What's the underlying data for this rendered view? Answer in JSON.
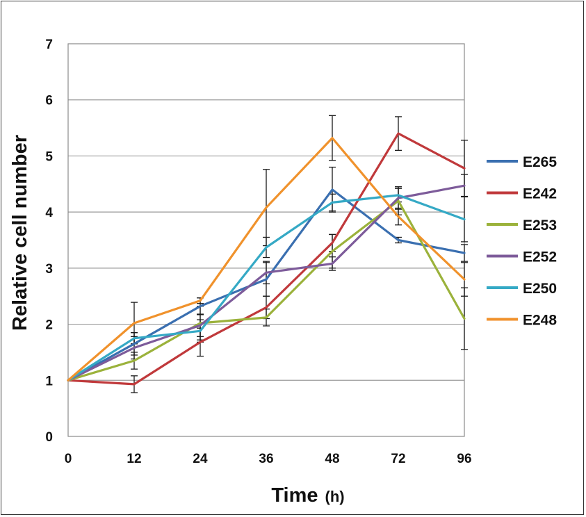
{
  "chart_data": {
    "type": "line",
    "title": "",
    "xlabel": "Time",
    "xlabel_unit": "(h)",
    "ylabel": "Relative cell number",
    "categories": [
      "0",
      "12",
      "24",
      "36",
      "48",
      "72",
      "96"
    ],
    "ylim": [
      0,
      7
    ],
    "yticks": [
      "0",
      "1",
      "2",
      "3",
      "4",
      "5",
      "6",
      "7"
    ],
    "grid": "horizontal",
    "legend_position": "right",
    "series": [
      {
        "name": "E265",
        "color": "#3a6fb0",
        "values": [
          1.0,
          1.65,
          2.32,
          2.8,
          4.4,
          3.5,
          3.27
        ],
        "errors": [
          0,
          0.2,
          0.15,
          0.3,
          0.4,
          0.05,
          0.15
        ]
      },
      {
        "name": "E242",
        "color": "#c0393b",
        "values": [
          1.0,
          0.93,
          1.68,
          2.3,
          3.45,
          5.4,
          4.78
        ],
        "errors": [
          0,
          0.15,
          0.25,
          0.2,
          0.15,
          0.3,
          0.5
        ]
      },
      {
        "name": "E253",
        "color": "#9bb23b",
        "values": [
          1.0,
          1.35,
          2.02,
          2.12,
          3.3,
          4.2,
          2.1
        ],
        "errors": [
          0,
          0.15,
          0.3,
          0.15,
          0.3,
          0.25,
          0.55
        ]
      },
      {
        "name": "E252",
        "color": "#7d5b9a",
        "values": [
          1.0,
          1.58,
          1.98,
          2.92,
          3.08,
          4.25,
          4.47
        ],
        "errors": [
          0,
          0.2,
          0.2,
          0.2,
          0.12,
          0.2,
          0.2
        ]
      },
      {
        "name": "E250",
        "color": "#35a9c5",
        "values": [
          1.0,
          1.75,
          1.88,
          3.37,
          4.17,
          4.3,
          3.87
        ],
        "errors": [
          0,
          0.1,
          0.2,
          0.18,
          0.15,
          0.12,
          0.4
        ]
      },
      {
        "name": "E248",
        "color": "#f0922c",
        "values": [
          1.0,
          2.02,
          2.42,
          4.08,
          5.32,
          3.92,
          2.8
        ],
        "errors": [
          0,
          0.37,
          0.05,
          0.68,
          0.4,
          0.15,
          0.3
        ]
      }
    ]
  }
}
